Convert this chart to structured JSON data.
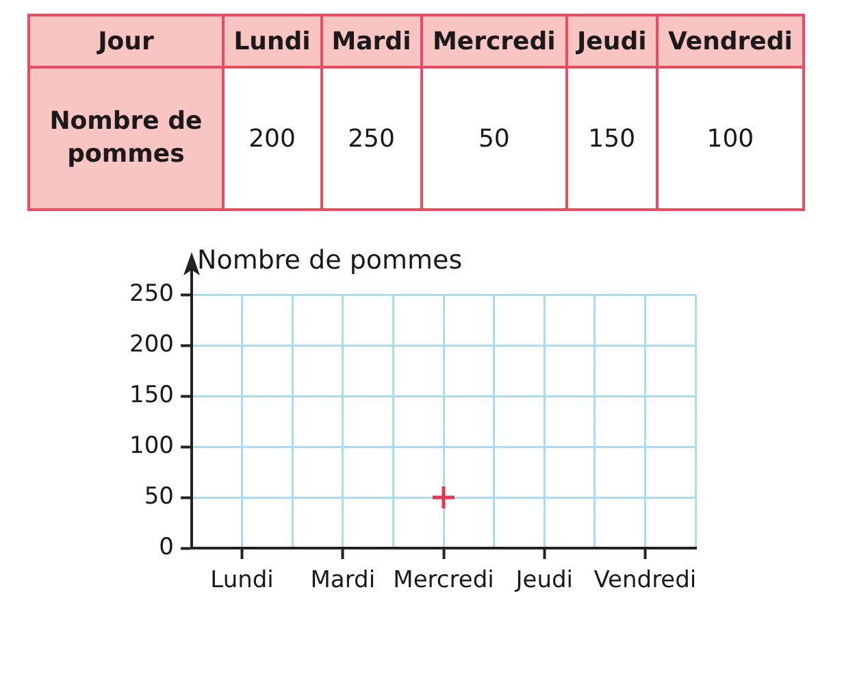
{
  "chart_data": [
    {
      "type": "other",
      "xlabel": "Jour",
      "ylabel": "Nombre de pommes",
      "categories": [
        "Lundi",
        "Mardi",
        "Mercredi",
        "Jeudi",
        "Vendredi"
      ],
      "values": [
        200,
        250,
        50,
        150,
        100
      ],
      "data_labels": true
    },
    {
      "type": "scatter",
      "ylabel": "Nombre de pommes",
      "categories": [
        "Lundi",
        "Mardi",
        "Mercredi",
        "Jeudi",
        "Vendredi"
      ],
      "values": [
        null,
        null,
        50,
        null,
        null
      ],
      "color": "#e8344f",
      "marker": "cross",
      "ylim": [
        0,
        250
      ],
      "yticks": [
        0,
        50,
        100,
        150,
        200,
        250
      ],
      "grid": true
    }
  ]
}
